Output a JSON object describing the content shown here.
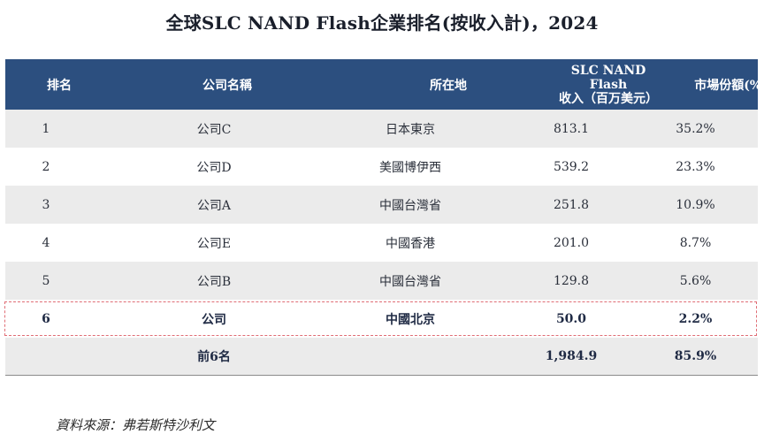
{
  "title": "全球SLC NAND Flash企業排名(按收入計)，2024",
  "table": {
    "headers": {
      "rank": "排名",
      "company": "公司名稱",
      "location": "所在地",
      "revenue_line1": "SLC NAND Flash",
      "revenue_line2": "收入（百万美元）",
      "share": "市場份額(%)"
    },
    "rows": [
      {
        "rank": "1",
        "company": "公司C",
        "location": "日本東京",
        "revenue": "813.1",
        "share": "35.2%"
      },
      {
        "rank": "2",
        "company": "公司D",
        "location": "美國博伊西",
        "revenue": "539.2",
        "share": "23.3%"
      },
      {
        "rank": "3",
        "company": "公司A",
        "location": "中國台灣省",
        "revenue": "251.8",
        "share": "10.9%"
      },
      {
        "rank": "4",
        "company": "公司E",
        "location": "中國香港",
        "revenue": "201.0",
        "share": "8.7%"
      },
      {
        "rank": "5",
        "company": "公司B",
        "location": "中國台灣省",
        "revenue": "129.8",
        "share": "5.6%"
      }
    ],
    "highlight": {
      "rank": "6",
      "company": "公司",
      "location": "中國北京",
      "revenue": "50.0",
      "share": "2.2%"
    },
    "total": {
      "label": "前6名",
      "revenue": "1,984.9",
      "share": "85.9%"
    }
  },
  "source": "資料來源：弗若斯特沙利文"
}
